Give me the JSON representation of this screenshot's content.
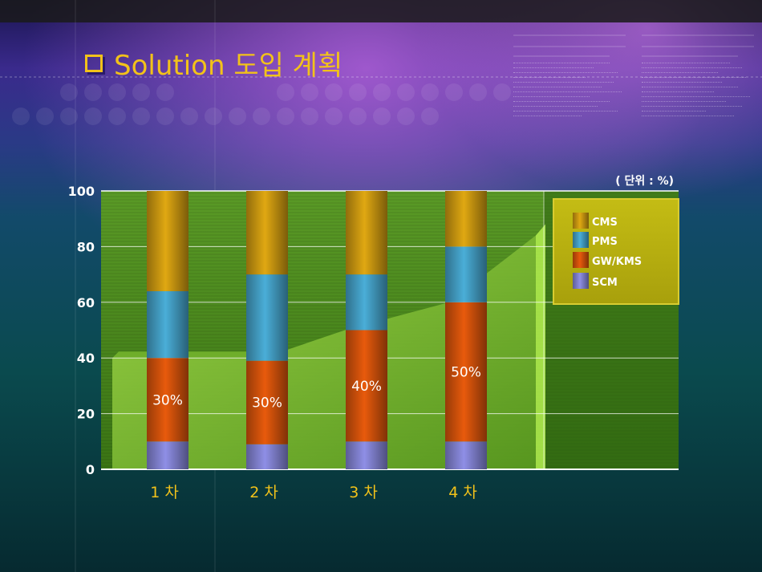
{
  "slide": {
    "title": "Solution 도입 계획"
  },
  "chart_data": {
    "type": "bar",
    "stacked": true,
    "unit_note": "( 단위 : %)",
    "categories": [
      "1 차",
      "2 차",
      "3 차",
      "4 차"
    ],
    "ylim": [
      0,
      100
    ],
    "yticks": [
      "0",
      "20",
      "40",
      "60",
      "80",
      "100"
    ],
    "grid": true,
    "legend_position": "top-right",
    "series": [
      {
        "name": "SCM",
        "values": [
          10,
          9,
          10,
          10
        ],
        "color": "#8f8fe6"
      },
      {
        "name": "GW/KMS",
        "values": [
          30,
          30,
          40,
          50
        ],
        "color": "#e85a0c"
      },
      {
        "name": "PMS",
        "values": [
          24,
          31,
          20,
          20
        ],
        "color": "#4aaed8"
      },
      {
        "name": "CMS",
        "values": [
          36,
          30,
          30,
          20
        ],
        "color": "#e0a812"
      }
    ],
    "data_labels": [
      "30%",
      "30%",
      "40%",
      "50%"
    ],
    "area_trend": [
      40,
      40,
      50,
      60,
      84
    ],
    "colors": {
      "plot_bg": "#4c8a1e",
      "area": "#8cc83a",
      "legend_bg": "#b5b010",
      "axis_text": "#ffffff",
      "category_text": "#f2c21a"
    }
  }
}
